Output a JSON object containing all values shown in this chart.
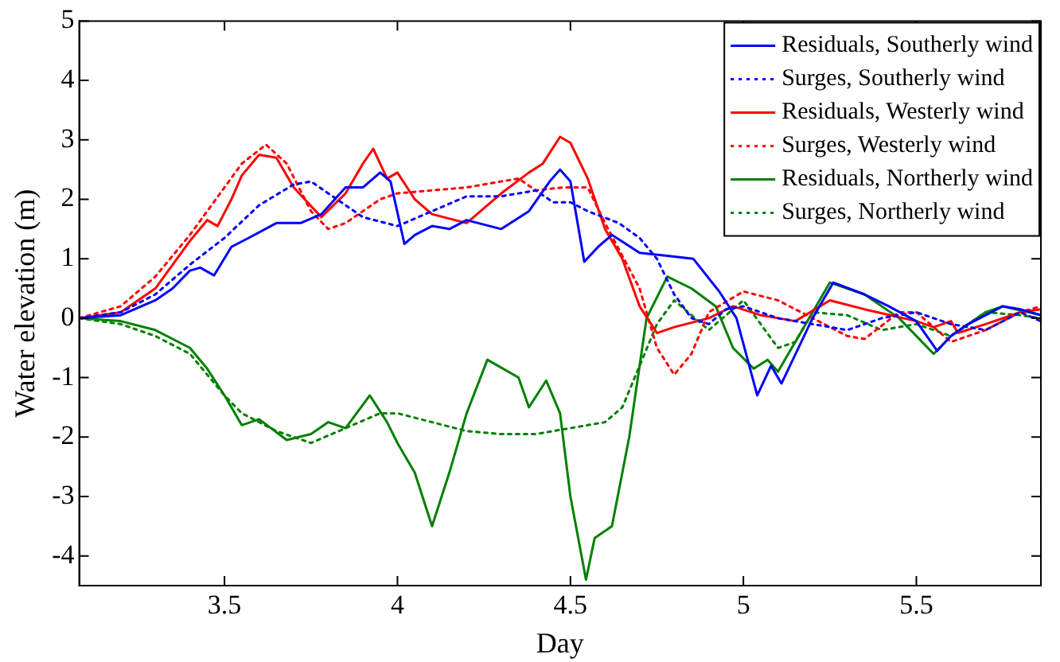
{
  "chart_data": {
    "type": "line",
    "xlabel": "Day",
    "ylabel": "Water elevation (m)",
    "xlim": [
      3.08,
      5.86
    ],
    "xticks": [
      3.5,
      4,
      4.5,
      5,
      5.5
    ],
    "ylim": [
      -4.5,
      5
    ],
    "yticks": [
      -4,
      -3,
      -2,
      -1,
      0,
      1,
      2,
      3,
      4,
      5
    ],
    "grid": false,
    "legend": "top right",
    "marker": "none",
    "series": [
      {
        "name": "Residuals, Southerly wind",
        "color": "#0000ff",
        "line_style": "solid",
        "x": [
          3.08,
          3.2,
          3.3,
          3.35,
          3.4,
          3.43,
          3.47,
          3.52,
          3.57,
          3.65,
          3.72,
          3.78,
          3.85,
          3.9,
          3.95,
          3.98,
          4.02,
          4.05,
          4.1,
          4.15,
          4.2,
          4.3,
          4.38,
          4.44,
          4.47,
          4.5,
          4.54,
          4.58,
          4.62,
          4.7,
          4.78,
          4.855,
          4.93,
          4.98,
          5.04,
          5.08,
          5.11,
          5.2,
          5.26,
          5.35,
          5.42,
          5.5,
          5.56,
          5.6,
          5.65,
          5.75,
          5.8,
          5.86
        ],
        "values": [
          0,
          0.05,
          0.3,
          0.5,
          0.8,
          0.85,
          0.72,
          1.2,
          1.35,
          1.6,
          1.6,
          1.75,
          2.2,
          2.2,
          2.45,
          2.3,
          1.25,
          1.4,
          1.55,
          1.5,
          1.65,
          1.5,
          1.8,
          2.3,
          2.5,
          2.3,
          0.95,
          1.2,
          1.4,
          1.1,
          1.05,
          1.0,
          0.45,
          0,
          -1.3,
          -0.8,
          -1.1,
          0,
          0.6,
          0.4,
          0.2,
          -0.05,
          -0.55,
          -0.3,
          -0.1,
          0.2,
          0.15,
          0.05
        ]
      },
      {
        "name": "Surges, Southerly wind",
        "color": "#0000ff",
        "line_style": "dotted",
        "x": [
          3.08,
          3.2,
          3.3,
          3.4,
          3.5,
          3.6,
          3.7,
          3.75,
          3.8,
          3.9,
          4.0,
          4.1,
          4.2,
          4.3,
          4.4,
          4.45,
          4.5,
          4.55,
          4.64,
          4.7,
          4.75,
          4.8,
          4.85,
          4.9,
          4.95,
          5.0,
          5.1,
          5.2,
          5.3,
          5.4,
          5.5,
          5.6,
          5.7,
          5.8,
          5.86
        ],
        "values": [
          0,
          0.1,
          0.4,
          0.9,
          1.35,
          1.9,
          2.25,
          2.3,
          2.1,
          1.7,
          1.55,
          1.8,
          2.05,
          2.05,
          2.15,
          1.95,
          1.95,
          1.8,
          1.6,
          1.35,
          1.0,
          0.4,
          0,
          -0.1,
          0.15,
          0.2,
          0,
          -0.1,
          -0.2,
          0,
          0.1,
          -0.1,
          -0.2,
          0.1,
          -0.05
        ]
      },
      {
        "name": "Residuals, Westerly wind",
        "color": "#ff0000",
        "line_style": "solid",
        "x": [
          3.08,
          3.2,
          3.3,
          3.4,
          3.45,
          3.48,
          3.52,
          3.55,
          3.6,
          3.65,
          3.7,
          3.78,
          3.85,
          3.9,
          3.93,
          3.97,
          4.0,
          4.05,
          4.1,
          4.2,
          4.3,
          4.38,
          4.42,
          4.47,
          4.5,
          4.55,
          4.6,
          4.65,
          4.7,
          4.75,
          4.8,
          4.9,
          4.97,
          5.05,
          5.15,
          5.25,
          5.35,
          5.5,
          5.55,
          5.6,
          5.62,
          5.7,
          5.8,
          5.86
        ],
        "values": [
          0,
          0.1,
          0.5,
          1.3,
          1.65,
          1.55,
          2.0,
          2.4,
          2.75,
          2.7,
          2.2,
          1.7,
          2.1,
          2.6,
          2.85,
          2.35,
          2.45,
          2.0,
          1.75,
          1.6,
          2.1,
          2.45,
          2.6,
          3.05,
          2.95,
          2.35,
          1.5,
          1.0,
          0.2,
          -0.25,
          -0.15,
          0,
          0.2,
          0.05,
          -0.05,
          0.3,
          0.15,
          -0.05,
          -0.15,
          -0.05,
          -0.25,
          -0.1,
          0.1,
          0.15
        ]
      },
      {
        "name": "Surges, Westerly wind",
        "color": "#ff0000",
        "line_style": "dotted",
        "x": [
          3.08,
          3.2,
          3.3,
          3.4,
          3.5,
          3.55,
          3.62,
          3.68,
          3.75,
          3.8,
          3.85,
          3.95,
          4.0,
          4.1,
          4.2,
          4.3,
          4.35,
          4.4,
          4.48,
          4.55,
          4.6,
          4.7,
          4.75,
          4.8,
          4.85,
          4.9,
          5.0,
          5.1,
          5.2,
          5.3,
          5.35,
          5.45,
          5.5,
          5.6,
          5.7,
          5.8,
          5.86
        ],
        "values": [
          0,
          0.2,
          0.7,
          1.4,
          2.2,
          2.6,
          2.92,
          2.6,
          1.8,
          1.5,
          1.6,
          2.0,
          2.1,
          2.15,
          2.2,
          2.3,
          2.35,
          2.15,
          2.2,
          2.2,
          1.6,
          0.5,
          -0.5,
          -0.95,
          -0.6,
          0.1,
          0.45,
          0.3,
          0,
          -0.3,
          -0.35,
          0.1,
          0.1,
          -0.4,
          -0.2,
          0.1,
          0.2
        ]
      },
      {
        "name": "Residuals, Northerly wind",
        "color": "#008000",
        "line_style": "solid",
        "x": [
          3.08,
          3.2,
          3.3,
          3.35,
          3.4,
          3.45,
          3.5,
          3.55,
          3.6,
          3.68,
          3.75,
          3.8,
          3.85,
          3.92,
          3.97,
          4.0,
          4.05,
          4.1,
          4.15,
          4.2,
          4.26,
          4.35,
          4.38,
          4.43,
          4.47,
          4.5,
          4.545,
          4.57,
          4.62,
          4.67,
          4.72,
          4.78,
          4.85,
          4.92,
          4.97,
          5.03,
          5.07,
          5.1,
          5.2,
          5.25,
          5.35,
          5.45,
          5.55,
          5.6,
          5.7,
          5.75,
          5.86
        ],
        "values": [
          0,
          -0.05,
          -0.2,
          -0.35,
          -0.5,
          -0.85,
          -1.3,
          -1.8,
          -1.7,
          -2.05,
          -1.95,
          -1.75,
          -1.85,
          -1.3,
          -1.75,
          -2.1,
          -2.6,
          -3.5,
          -2.6,
          -1.6,
          -0.7,
          -1.0,
          -1.5,
          -1.05,
          -1.6,
          -3.0,
          -4.4,
          -3.7,
          -3.5,
          -2.0,
          0,
          0.7,
          0.5,
          0.2,
          -0.5,
          -0.85,
          -0.7,
          -0.9,
          0.1,
          0.6,
          0.4,
          0,
          -0.6,
          -0.3,
          0.1,
          0.2,
          0.05
        ]
      },
      {
        "name": "Surges, Northerly wind",
        "color": "#008000",
        "line_style": "dotted",
        "x": [
          3.08,
          3.2,
          3.3,
          3.4,
          3.5,
          3.55,
          3.65,
          3.75,
          3.85,
          3.95,
          4.0,
          4.1,
          4.2,
          4.3,
          4.4,
          4.5,
          4.6,
          4.65,
          4.7,
          4.75,
          4.8,
          4.85,
          4.9,
          5.0,
          5.1,
          5.15,
          5.2,
          5.3,
          5.4,
          5.5,
          5.6,
          5.7,
          5.8,
          5.86
        ],
        "values": [
          0,
          -0.1,
          -0.3,
          -0.6,
          -1.3,
          -1.6,
          -1.9,
          -2.1,
          -1.85,
          -1.6,
          -1.6,
          -1.75,
          -1.9,
          -1.95,
          -1.95,
          -1.85,
          -1.75,
          -1.5,
          -0.8,
          -0.1,
          0.3,
          0.05,
          -0.2,
          0.3,
          -0.5,
          -0.4,
          0.1,
          0.05,
          -0.2,
          -0.1,
          -0.3,
          0.1,
          0.05,
          0
        ]
      }
    ]
  }
}
